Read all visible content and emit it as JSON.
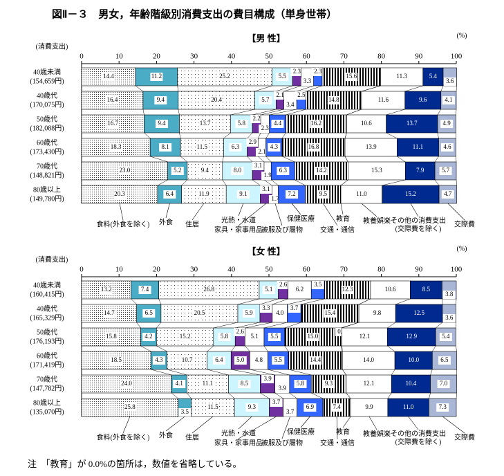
{
  "title": "図Ⅱ－３　男女，年齢階級別消費支出の費目構成（単身世帯）",
  "note": "注　「教育」が 0.0%の箇所は，数値を省略している。",
  "chart_data": [
    {
      "type": "bar",
      "orientation": "horizontal",
      "stacked": true,
      "title": "【男 性】",
      "unit_label": "(%)",
      "y_axis_label": "(消費支出)",
      "categories": [
        "40歳未満",
        "40歳代",
        "50歳代",
        "60歳代",
        "70歳代",
        "80歳以上"
      ],
      "category_sublabels": [
        "(154,659円)",
        "(170,075円)",
        "(182,088円)",
        "(173,430円)",
        "(148,821円)",
        "(149,780円)"
      ],
      "xlim": [
        0,
        100
      ],
      "xticks": [
        0,
        10,
        20,
        30,
        40,
        50,
        60,
        70,
        80,
        90,
        100
      ],
      "series": [
        {
          "name": "食料(外食を除く)",
          "color": "#ffffff",
          "pattern": "dense-dots",
          "values": [
            14.4,
            16.4,
            16.7,
            18.3,
            23.0,
            20.3
          ],
          "value_labels": [
            "14.4",
            "16.4",
            "16.7",
            "18.3",
            "23.0",
            "20.3"
          ]
        },
        {
          "name": "外食",
          "color": "#4bacc6",
          "values": [
            11.2,
            9.4,
            9.4,
            8.1,
            5.2,
            6.4
          ],
          "value_labels": [
            "11.2",
            "9.4",
            "9.4",
            "8.1",
            "5.2",
            "6.4"
          ]
        },
        {
          "name": "住居",
          "color": "#ffffff",
          "pattern": "sparse-dots",
          "values": [
            25.2,
            20.4,
            13.7,
            11.5,
            9.4,
            11.9
          ],
          "value_labels": [
            "25.2",
            "20.4",
            "13.7",
            "11.5",
            "9.4",
            "11.9"
          ]
        },
        {
          "name": "光熱・水道",
          "color": "#ccf5ff",
          "values": [
            5.5,
            5.7,
            5.8,
            6.3,
            8.0,
            9.1
          ],
          "value_labels": [
            "5.5",
            "5.7",
            "5.8",
            "6.3",
            "8.0",
            "9.1"
          ]
        },
        {
          "name": "家具・家事用品",
          "color": "#7030a0",
          "values": [
            2.3,
            2.1,
            2.2,
            2.9,
            3.1,
            3.1
          ],
          "value_labels": [
            "2.3",
            "2.1",
            "2.2",
            "2.9",
            "3.1",
            "3.1"
          ]
        },
        {
          "name": "被服及び履物",
          "color": "#ffffff",
          "values": [
            3.3,
            3.4,
            2.3,
            2.1,
            1.9,
            1.7
          ],
          "value_labels": [
            "3.3",
            "3.4",
            "2.3",
            "2.1",
            "1.9",
            "1.7"
          ]
        },
        {
          "name": "保健医療",
          "color": "#3366ff",
          "values": [
            2.3,
            2.5,
            4.4,
            4.3,
            6.3,
            7.2
          ],
          "value_labels": [
            "2.3",
            "2.5",
            "4.4",
            "4.3",
            "6.3",
            "7.2"
          ]
        },
        {
          "name": "交通・通信",
          "color": "#ffffff",
          "pattern": "stripes",
          "values": [
            15.6,
            14.8,
            16.2,
            16.8,
            14.2,
            9.5
          ],
          "value_labels": [
            "15.6",
            "14.8",
            "16.2",
            "16.8",
            "14.2",
            "9.5"
          ]
        },
        {
          "name": "教育",
          "color": "#ffffff",
          "values": [
            null,
            null,
            null,
            null,
            null,
            null
          ],
          "value_labels": [
            null,
            null,
            null,
            null,
            null,
            null
          ]
        },
        {
          "name": "教養娯楽",
          "color": "#ffffff",
          "values": [
            11.3,
            11.6,
            10.6,
            13.9,
            15.3,
            11.0
          ],
          "value_labels": [
            "11.3",
            "11.6",
            "10.6",
            "13.9",
            "15.3",
            "11.0"
          ]
        },
        {
          "name": "その他の消費支出(交際費を除く)",
          "color": "#002a8f",
          "values": [
            5.4,
            9.6,
            13.7,
            11.1,
            7.9,
            15.2
          ],
          "value_labels": [
            "5.4",
            "9.6",
            "13.7",
            "11.1",
            "7.9",
            "15.2"
          ]
        },
        {
          "name": "交際費",
          "color": "#a9b6d6",
          "values": [
            3.6,
            4.1,
            4.9,
            4.6,
            5.7,
            4.7
          ],
          "value_labels": [
            "3.6",
            "4.1",
            "4.9",
            "4.6",
            "5.7",
            "4.7"
          ]
        }
      ]
    },
    {
      "type": "bar",
      "orientation": "horizontal",
      "stacked": true,
      "title": "【女 性】",
      "unit_label": "(%)",
      "y_axis_label": "(消費支出)",
      "categories": [
        "40歳未満",
        "40歳代",
        "50歳代",
        "60歳代",
        "70歳代",
        "80歳以上"
      ],
      "category_sublabels": [
        "(160,415円)",
        "(165,329円)",
        "(176,193円)",
        "(171,419円)",
        "(147,782円)",
        "(135,070円)"
      ],
      "xlim": [
        0,
        100
      ],
      "xticks": [
        0,
        10,
        20,
        30,
        40,
        50,
        60,
        70,
        80,
        90,
        100
      ],
      "series": [
        {
          "name": "食料(外食を除く)",
          "color": "#ffffff",
          "pattern": "dense-dots",
          "values": [
            13.2,
            14.7,
            15.8,
            18.5,
            24.0,
            25.8
          ],
          "value_labels": [
            "13.2",
            "14.7",
            "15.8",
            "18.5",
            "24.0",
            "25.8"
          ]
        },
        {
          "name": "外食",
          "color": "#4bacc6",
          "values": [
            7.4,
            6.5,
            4.2,
            4.3,
            4.1,
            3.5
          ],
          "value_labels": [
            "7.4",
            "6.5",
            "4.2",
            "4.3",
            "4.1",
            "3.5"
          ]
        },
        {
          "name": "住居",
          "color": "#ffffff",
          "pattern": "sparse-dots",
          "values": [
            26.8,
            20.5,
            15.2,
            10.7,
            11.1,
            11.5
          ],
          "value_labels": [
            "26.8",
            "20.5",
            "15.2",
            "10.7",
            "11.1",
            "11.5"
          ]
        },
        {
          "name": "光熱・水道",
          "color": "#ccf5ff",
          "values": [
            5.1,
            5.9,
            5.8,
            6.4,
            8.5,
            9.3
          ],
          "value_labels": [
            "5.1",
            "5.9",
            "5.8",
            "6.4",
            "8.5",
            "9.3"
          ]
        },
        {
          "name": "家具・家事用品",
          "color": "#7030a0",
          "values": [
            2.6,
            3.3,
            2.6,
            5.0,
            3.9,
            3.7
          ],
          "value_labels": [
            "2.6",
            "3.3",
            "2.6",
            "5.0",
            "3.9",
            "3.7"
          ]
        },
        {
          "name": "被服及び履物",
          "color": "#ffffff",
          "values": [
            6.2,
            4.0,
            5.1,
            4.8,
            3.9,
            3.7
          ],
          "value_labels": [
            "6.2",
            "4.0",
            "5.1",
            "4.8",
            "3.9",
            "3.7"
          ]
        },
        {
          "name": "保健医療",
          "color": "#3366ff",
          "values": [
            3.5,
            3.7,
            5.5,
            5.5,
            5.8,
            6.9
          ],
          "value_labels": [
            "3.5",
            "3.7",
            "5.5",
            "5.5",
            "5.8",
            "6.9"
          ]
        },
        {
          "name": "交通・通信",
          "color": "#ffffff",
          "pattern": "stripes",
          "values": [
            12.3,
            15.4,
            15.0,
            14.4,
            9.3,
            7.4
          ],
          "value_labels": [
            "12.3",
            "15.4",
            "15.0",
            "14.4",
            "9.3",
            "7.4"
          ]
        },
        {
          "name": "教育",
          "color": "#ffffff",
          "values": [
            null,
            null,
            0.3,
            null,
            null,
            null
          ],
          "value_labels": [
            null,
            null,
            "0.3",
            null,
            null,
            null
          ]
        },
        {
          "name": "教養娯楽",
          "color": "#ffffff",
          "values": [
            10.6,
            9.8,
            12.1,
            14.0,
            12.1,
            9.9
          ],
          "value_labels": [
            "10.6",
            "9.8",
            "12.1",
            "14.0",
            "12.1",
            "9.9"
          ]
        },
        {
          "name": "その他の消費支出(交際費を除く)",
          "color": "#002a8f",
          "values": [
            8.5,
            12.5,
            12.9,
            10.0,
            10.4,
            11.0
          ],
          "value_labels": [
            "8.5",
            "12.5",
            "12.9",
            "10.0",
            "10.4",
            "11.0"
          ]
        },
        {
          "name": "交際費",
          "color": "#a9b6d6",
          "values": [
            3.8,
            3.6,
            5.4,
            6.5,
            7.0,
            7.3
          ],
          "value_labels": [
            "3.8",
            "3.6",
            "5.4",
            "6.5",
            "7.0",
            "7.3"
          ]
        }
      ]
    }
  ]
}
